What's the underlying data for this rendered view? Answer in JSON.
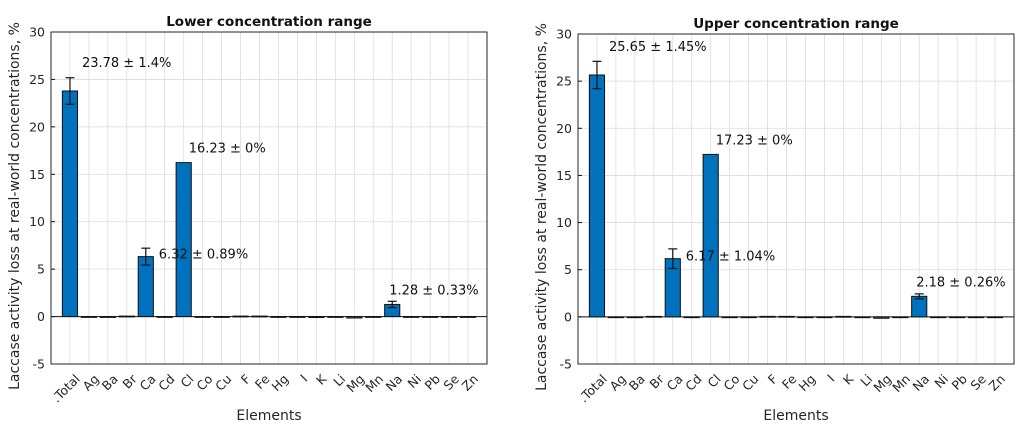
{
  "chart_data": [
    {
      "type": "bar",
      "title": "Lower concentration range",
      "xlabel": "Elements",
      "ylabel": "Laccase activity loss at real-world concentrations, %",
      "ylim": [
        -5,
        30
      ],
      "yticks": [
        -5,
        0,
        5,
        10,
        15,
        20,
        25,
        30
      ],
      "grid": true,
      "categories": [
        ".Total",
        "Ag",
        "Ba",
        "Br",
        "Ca",
        "Cd",
        "Cl",
        "Co",
        "Cu",
        "F",
        "Fe",
        "Hg",
        "I",
        "K",
        "Li",
        "Mg",
        "Mn",
        "Na",
        "Ni",
        "Pb",
        "Se",
        "Zn"
      ],
      "values": [
        23.78,
        0,
        0,
        0.05,
        6.32,
        0,
        16.23,
        0,
        0,
        0.05,
        0.05,
        0,
        0,
        -0.1,
        0,
        -0.15,
        0,
        1.28,
        0,
        0,
        0,
        0
      ],
      "errors": [
        1.4,
        0,
        0,
        0,
        0.89,
        0,
        0,
        0,
        0,
        0,
        0,
        0,
        0,
        0,
        0,
        0,
        0,
        0.33,
        0,
        0,
        0,
        0
      ],
      "annotations": [
        {
          "index": 0,
          "text": "23.78 ± 1.4%"
        },
        {
          "index": 6,
          "text": "16.23 ± 0%"
        },
        {
          "index": 4,
          "text": "6.32 ± 0.89%"
        },
        {
          "index": 17,
          "text": "1.28 ± 0.33%"
        }
      ]
    },
    {
      "type": "bar",
      "title": "Upper concentration range",
      "xlabel": "Elements",
      "ylabel": "Laccase activity loss at real-world concentrations, %",
      "ylim": [
        -5,
        30
      ],
      "yticks": [
        -5,
        0,
        5,
        10,
        15,
        20,
        25,
        30
      ],
      "grid": true,
      "categories": [
        ".Total",
        "Ag",
        "Ba",
        "Br",
        "Ca",
        "Cd",
        "Cl",
        "Co",
        "Cu",
        "F",
        "Fe",
        "Hg",
        "I",
        "K",
        "Li",
        "Mg",
        "Mn",
        "Na",
        "Ni",
        "Pb",
        "Se",
        "Zn"
      ],
      "values": [
        25.65,
        0,
        0,
        0.05,
        6.17,
        0,
        17.23,
        0,
        0,
        0.05,
        0.05,
        0,
        0,
        0.05,
        0,
        -0.15,
        0,
        2.18,
        0,
        0,
        0,
        0
      ],
      "errors": [
        1.45,
        0,
        0,
        0,
        1.04,
        0,
        0,
        0,
        0,
        0,
        0,
        0,
        0,
        0,
        0,
        0,
        0,
        0.26,
        0,
        0,
        0,
        0
      ],
      "annotations": [
        {
          "index": 0,
          "text": "25.65 ± 1.45%"
        },
        {
          "index": 6,
          "text": "17.23 ± 0%"
        },
        {
          "index": 4,
          "text": "6.17 ± 1.04%"
        },
        {
          "index": 17,
          "text": "2.18 ± 0.26%"
        }
      ]
    }
  ],
  "colors": {
    "bar": "#0072bd",
    "grid": "#dcdcdc",
    "axis": "#262626"
  }
}
